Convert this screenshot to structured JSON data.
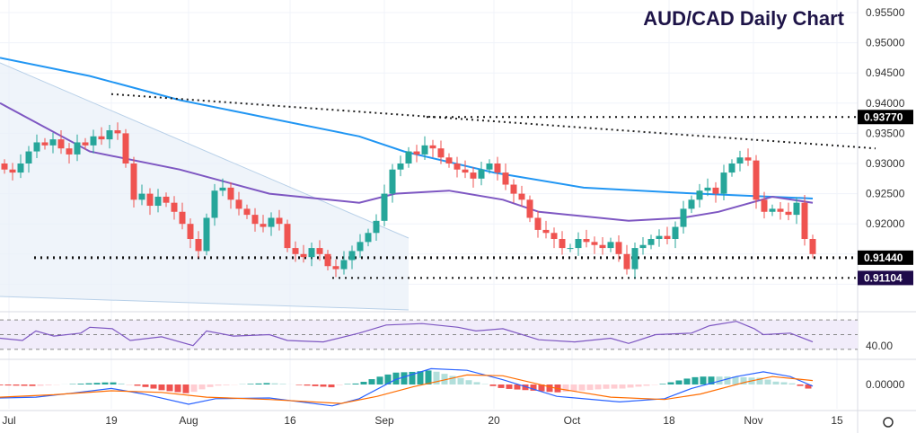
{
  "chart_data": {
    "type": "candlestick",
    "title": "AUD/CAD Daily Chart",
    "y_ticks": [
      "0.95500",
      "0.95000",
      "0.94500",
      "0.94000",
      "0.93500",
      "0.93000",
      "0.92500",
      "0.92000"
    ],
    "ylim": [
      0.9085,
      0.9555
    ],
    "x_ticks": [
      "Jul",
      "19",
      "Aug",
      "16",
      "Sep",
      "20",
      "Oct",
      "18",
      "Nov",
      "15"
    ],
    "first_open": 0.93,
    "closes": [
      0.929,
      0.9285,
      0.93,
      0.932,
      0.9335,
      0.933,
      0.934,
      0.9325,
      0.9315,
      0.9335,
      0.933,
      0.9345,
      0.934,
      0.9355,
      0.935,
      0.93,
      0.924,
      0.925,
      0.923,
      0.9245,
      0.9235,
      0.922,
      0.92,
      0.9175,
      0.9155,
      0.921,
      0.9255,
      0.926,
      0.924,
      0.9225,
      0.9215,
      0.92,
      0.9195,
      0.921,
      0.92,
      0.916,
      0.915,
      0.9145,
      0.916,
      0.915,
      0.913,
      0.9125,
      0.914,
      0.9155,
      0.917,
      0.9185,
      0.9205,
      0.925,
      0.929,
      0.93,
      0.932,
      0.9315,
      0.933,
      0.9325,
      0.931,
      0.93,
      0.929,
      0.9285,
      0.9275,
      0.929,
      0.93,
      0.9285,
      0.9265,
      0.925,
      0.924,
      0.921,
      0.919,
      0.9185,
      0.9175,
      0.916,
      0.916,
      0.9175,
      0.917,
      0.9165,
      0.916,
      0.917,
      0.915,
      0.9125,
      0.916,
      0.9165,
      0.9175,
      0.918,
      0.9175,
      0.9195,
      0.9225,
      0.924,
      0.9255,
      0.926,
      0.925,
      0.9285,
      0.93,
      0.931,
      0.9305,
      0.924,
      0.922,
      0.9225,
      0.922,
      0.9215,
      0.9235,
      0.9175,
      0.915
    ],
    "ma_slow": [
      [
        0,
        0.9475
      ],
      [
        100,
        0.9445
      ],
      [
        200,
        0.9405
      ],
      [
        300,
        0.9375
      ],
      [
        400,
        0.9345
      ],
      [
        450,
        0.932
      ],
      [
        550,
        0.9285
      ],
      [
        650,
        0.926
      ],
      [
        750,
        0.9252
      ],
      [
        905,
        0.9242
      ]
    ],
    "ma_fast": [
      [
        0,
        0.94
      ],
      [
        100,
        0.932
      ],
      [
        200,
        0.929
      ],
      [
        300,
        0.925
      ],
      [
        400,
        0.9235
      ],
      [
        440,
        0.925
      ],
      [
        500,
        0.9255
      ],
      [
        560,
        0.924
      ],
      [
        600,
        0.922
      ],
      [
        700,
        0.9205
      ],
      [
        760,
        0.921
      ],
      [
        800,
        0.922
      ],
      [
        860,
        0.9245
      ],
      [
        905,
        0.9235
      ]
    ],
    "levels": [
      {
        "label": "0.93770",
        "value": 0.9377,
        "color": "#000000"
      },
      {
        "label": "0.91440",
        "value": 0.9144,
        "color": "#000000"
      },
      {
        "label": "0.91104",
        "value": 0.91104,
        "color": "#1e0a4a"
      }
    ],
    "trendline": [
      [
        124,
        0.9415
      ],
      [
        975,
        0.9325
      ]
    ],
    "rsi": {
      "label": "40.00",
      "points": [
        [
          0,
          45
        ],
        [
          25,
          42
        ],
        [
          40,
          55
        ],
        [
          60,
          48
        ],
        [
          90,
          52
        ],
        [
          100,
          60
        ],
        [
          125,
          58
        ],
        [
          145,
          42
        ],
        [
          180,
          47
        ],
        [
          215,
          35
        ],
        [
          230,
          55
        ],
        [
          260,
          48
        ],
        [
          300,
          50
        ],
        [
          320,
          42
        ],
        [
          360,
          40
        ],
        [
          400,
          52
        ],
        [
          430,
          63
        ],
        [
          470,
          65
        ],
        [
          510,
          60
        ],
        [
          530,
          55
        ],
        [
          560,
          58
        ],
        [
          600,
          43
        ],
        [
          640,
          40
        ],
        [
          680,
          45
        ],
        [
          700,
          38
        ],
        [
          730,
          50
        ],
        [
          770,
          52
        ],
        [
          790,
          62
        ],
        [
          820,
          68
        ],
        [
          840,
          58
        ],
        [
          850,
          50
        ],
        [
          880,
          52
        ],
        [
          905,
          40
        ]
      ]
    },
    "macd": {
      "label": "0.00000",
      "line": [
        [
          0,
          -0.0017
        ],
        [
          40,
          -0.0016
        ],
        [
          80,
          -0.0011
        ],
        [
          124,
          -0.0005
        ],
        [
          160,
          -0.0012
        ],
        [
          210,
          -0.0025
        ],
        [
          240,
          -0.0018
        ],
        [
          300,
          -0.0017
        ],
        [
          370,
          -0.0027
        ],
        [
          400,
          -0.0018
        ],
        [
          440,
          0.0006
        ],
        [
          480,
          0.002
        ],
        [
          520,
          0.0018
        ],
        [
          560,
          0.0006
        ],
        [
          620,
          -0.0015
        ],
        [
          690,
          -0.0022
        ],
        [
          740,
          -0.0018
        ],
        [
          770,
          -0.0005
        ],
        [
          820,
          0.001
        ],
        [
          850,
          0.0016
        ],
        [
          880,
          0.001
        ],
        [
          905,
          -0.0002
        ]
      ],
      "signal": [
        [
          0,
          -0.0016
        ],
        [
          60,
          -0.0013
        ],
        [
          124,
          -0.0008
        ],
        [
          180,
          -0.001
        ],
        [
          230,
          -0.0016
        ],
        [
          300,
          -0.0019
        ],
        [
          380,
          -0.0024
        ],
        [
          420,
          -0.0015
        ],
        [
          460,
          -0.0003
        ],
        [
          520,
          0.0012
        ],
        [
          560,
          0.0011
        ],
        [
          620,
          -0.0005
        ],
        [
          680,
          -0.0016
        ],
        [
          740,
          -0.0019
        ],
        [
          780,
          -0.0012
        ],
        [
          830,
          0.0003
        ],
        [
          860,
          0.001
        ],
        [
          905,
          0.0005
        ]
      ]
    }
  }
}
